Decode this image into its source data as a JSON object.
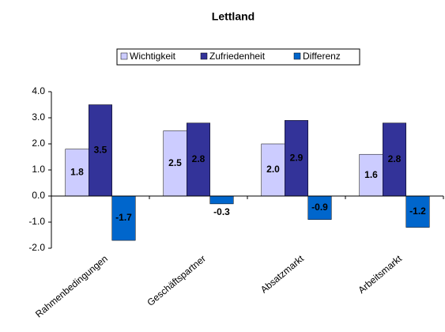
{
  "chart_data": {
    "type": "bar",
    "title": "Lettland",
    "categories": [
      "Rahmenbedingungen",
      "Geschäftspartner",
      "Absatzmarkt",
      "Arbeitsmarkt"
    ],
    "series": [
      {
        "name": "Wichtigkeit",
        "color": "#ccccff",
        "values": [
          1.8,
          2.5,
          2.0,
          1.6
        ],
        "value_labels": [
          "1.8",
          "2.5",
          "2.0",
          "1.6"
        ]
      },
      {
        "name": "Zufriedenheit",
        "color": "#333399",
        "values": [
          3.5,
          2.8,
          2.9,
          2.8
        ],
        "value_labels": [
          "3.5",
          "2.8",
          "2.9",
          "2.8"
        ]
      },
      {
        "name": "Differenz",
        "color": "#0066cc",
        "values": [
          -1.7,
          -0.3,
          -0.9,
          -1.2
        ],
        "value_labels": [
          "-1.7",
          "-0.3",
          "-0.9",
          "-1.2"
        ]
      }
    ],
    "ylim": [
      -2,
      4
    ],
    "yticks": [
      {
        "value": -2,
        "label": "-2.0"
      },
      {
        "value": -1,
        "label": "-1.0"
      },
      {
        "value": 0,
        "label": "0.0"
      },
      {
        "value": 1,
        "label": "1.0"
      },
      {
        "value": 2,
        "label": "2.0"
      },
      {
        "value": 3,
        "label": "3.0"
      },
      {
        "value": 4,
        "label": "4.0"
      }
    ],
    "grid": false,
    "legend": "top"
  }
}
